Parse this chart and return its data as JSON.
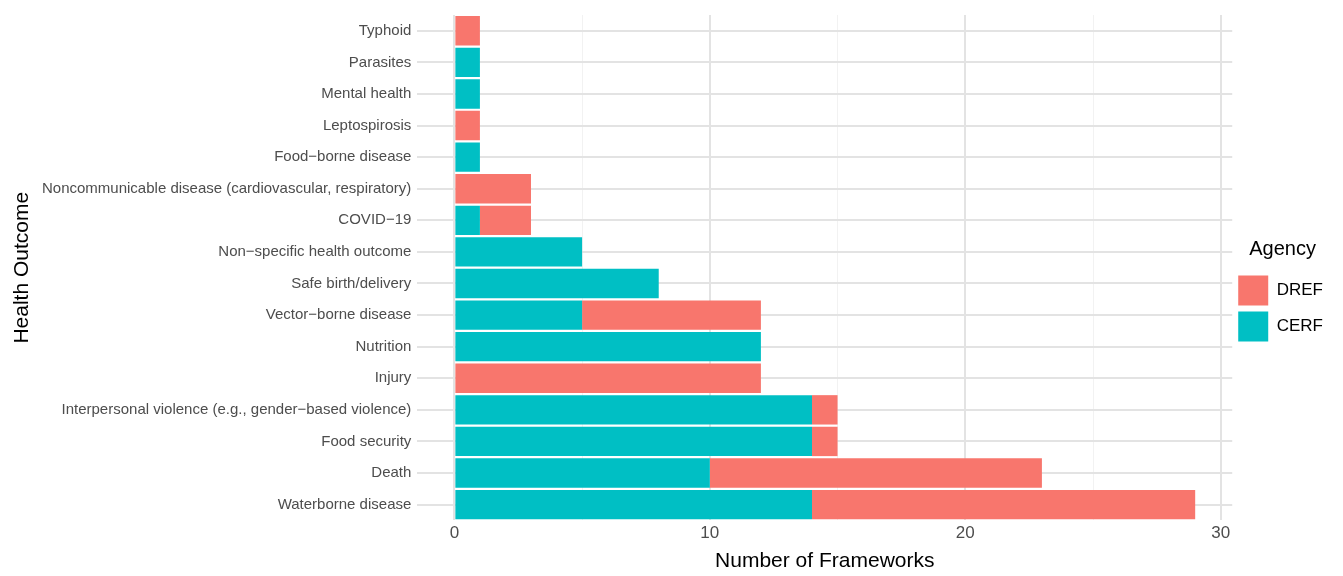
{
  "chart_data": {
    "type": "bar",
    "orientation": "horizontal",
    "stacked": true,
    "categories": [
      "Typhoid",
      "Parasites",
      "Mental health",
      "Leptospirosis",
      "Food−borne disease",
      "Noncommunicable disease (cardiovascular, respiratory)",
      "COVID−19",
      "Non−specific health outcome",
      "Safe birth/delivery",
      "Vector−borne disease",
      "Nutrition",
      "Injury",
      "Interpersonal violence (e.g., gender−based violence)",
      "Food security",
      "Death",
      "Waterborne disease"
    ],
    "series": [
      {
        "name": "CERF",
        "color": "#00bfc4",
        "values": [
          null,
          1,
          1,
          null,
          1,
          null,
          1,
          5,
          8,
          5,
          12,
          null,
          14,
          14,
          10,
          14
        ]
      },
      {
        "name": "DREF",
        "color": "#f8766d",
        "values": [
          1,
          null,
          null,
          1,
          null,
          3,
          2,
          null,
          null,
          7,
          null,
          12,
          1,
          1,
          13,
          15
        ]
      }
    ],
    "xlim": [
      -1.45,
      30.45
    ],
    "xticks": [
      0,
      {
        "value": 5,
        "label": null
      },
      10,
      {
        "value": 15,
        "label": null
      },
      20,
      {
        "value": 25,
        "label": null
      },
      30
    ],
    "xlabel": "Number of Frameworks",
    "ylabel": "Health Outcome",
    "legend_title": "Agency",
    "legend": "right",
    "grid": true
  }
}
